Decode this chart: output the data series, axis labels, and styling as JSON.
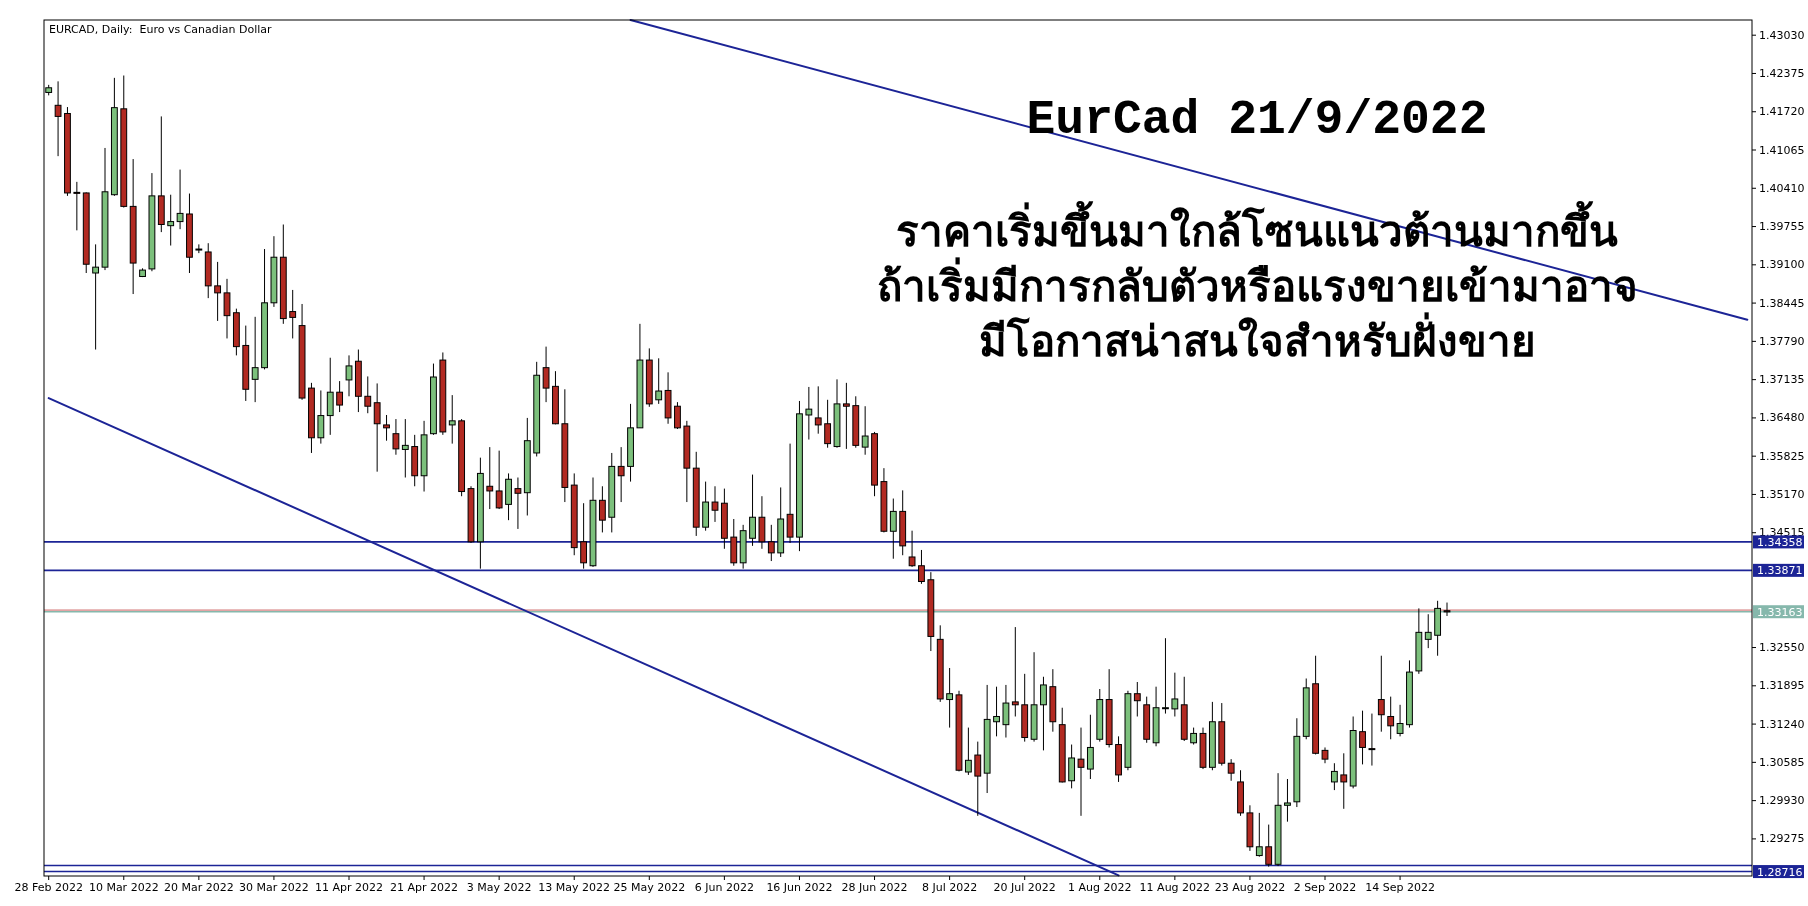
{
  "chart_data": {
    "type": "candlestick",
    "title": "EurCad 21/9/2022",
    "subtitle": "ราคาเริ่มขึ้นมาใกล้โซนแนวต้านมากขึ้น\nถ้าเริ่มมีการกลับตัวหรือแรงขายเข้ามาอาจ\nมีโอกาสน่าสนใจสำหรับฝั่งขาย",
    "annotations": [
      "EURCAD, Daily:  Euro vs Canadian Dollar"
    ],
    "categories": [
      "28 Feb 2022",
      null,
      null,
      null,
      null,
      null,
      null,
      null,
      "10 Mar 2022",
      null,
      null,
      null,
      null,
      null,
      null,
      null,
      "20 Mar 2022",
      null,
      null,
      null,
      null,
      null,
      null,
      null,
      "30 Mar 2022",
      null,
      null,
      null,
      null,
      null,
      null,
      null,
      "11 Apr 2022",
      null,
      null,
      null,
      null,
      null,
      null,
      null,
      "21 Apr 2022",
      null,
      null,
      null,
      null,
      null,
      null,
      null,
      "3 May 2022",
      null,
      null,
      null,
      null,
      null,
      null,
      null,
      "13 May 2022",
      null,
      null,
      null,
      null,
      null,
      null,
      null,
      "25 May 2022",
      null,
      null,
      null,
      null,
      null,
      null,
      null,
      "6 Jun 2022",
      null,
      null,
      null,
      null,
      null,
      null,
      null,
      "16 Jun 2022",
      null,
      null,
      null,
      null,
      null,
      null,
      null,
      "28 Jun 2022",
      null,
      null,
      null,
      null,
      null,
      null,
      null,
      "8 Jul 2022",
      null,
      null,
      null,
      null,
      null,
      null,
      null,
      "20 Jul 2022",
      null,
      null,
      null,
      null,
      null,
      null,
      null,
      "1 Aug 2022",
      null,
      null,
      null,
      null,
      null,
      null,
      null,
      "11 Aug 2022",
      null,
      null,
      null,
      null,
      null,
      null,
      null,
      "23 Aug 2022",
      null,
      null,
      null,
      null,
      null,
      null,
      null,
      "2 Sep 2022",
      null,
      null,
      null,
      null,
      null,
      null,
      null,
      "14 Sep 2022",
      null,
      null,
      null,
      null,
      null,
      null,
      null,
      null,
      null,
      null,
      null,
      null,
      null,
      null,
      null,
      null,
      null,
      null,
      null,
      null,
      null,
      null,
      null,
      null,
      null,
      null,
      null,
      null,
      null,
      null,
      null,
      null,
      null,
      null,
      null,
      null,
      null
    ],
    "ohlc": [
      [
        1.4205,
        1.4218,
        1.42,
        1.4213
      ],
      [
        1.4183,
        1.4224,
        1.4096,
        1.4164
      ],
      [
        1.4169,
        1.418,
        1.4028,
        1.4033
      ],
      [
        1.4034,
        1.4052,
        1.3969,
        1.4033
      ],
      [
        1.4033,
        1.4034,
        1.3896,
        1.3911
      ],
      [
        1.3896,
        1.3945,
        1.3765,
        1.3906
      ],
      [
        1.3906,
        1.411,
        1.3901,
        1.4035
      ],
      [
        1.403,
        1.423,
        1.4028,
        1.4179
      ],
      [
        1.4177,
        1.4234,
        1.4008,
        1.401
      ],
      [
        1.401,
        1.4091,
        1.386,
        1.3913
      ],
      [
        1.389,
        1.3904,
        1.3889,
        1.3901
      ],
      [
        1.3903,
        1.4067,
        1.3899,
        1.4028
      ],
      [
        1.4028,
        1.4164,
        1.3966,
        1.3979
      ],
      [
        1.3977,
        1.403,
        1.3943,
        1.3984
      ],
      [
        1.3984,
        1.4073,
        1.3971,
        1.3998
      ],
      [
        1.3997,
        1.4032,
        1.3896,
        1.3923
      ],
      [
        1.3937,
        1.3945,
        1.393,
        1.3937
      ],
      [
        1.3932,
        1.3947,
        1.3853,
        1.3874
      ],
      [
        1.3874,
        1.3915,
        1.3814,
        1.3862
      ],
      [
        1.3862,
        1.3886,
        1.3784,
        1.3823
      ],
      [
        1.3828,
        1.3835,
        1.3755,
        1.377
      ],
      [
        1.3772,
        1.3806,
        1.3677,
        1.3697
      ],
      [
        1.3714,
        1.3821,
        1.3675,
        1.3734
      ],
      [
        1.3734,
        1.3937,
        1.3731,
        1.3845
      ],
      [
        1.3845,
        1.3959,
        1.3838,
        1.3923
      ],
      [
        1.3923,
        1.3979,
        1.3809,
        1.3818
      ],
      [
        1.383,
        1.3867,
        1.3784,
        1.382
      ],
      [
        1.3806,
        1.3843,
        1.3679,
        1.3682
      ],
      [
        1.3699,
        1.3708,
        1.3588,
        1.3614
      ],
      [
        1.3614,
        1.3695,
        1.3604,
        1.3652
      ],
      [
        1.3652,
        1.3751,
        1.3619,
        1.3692
      ],
      [
        1.3692,
        1.3711,
        1.3658,
        1.367
      ],
      [
        1.3713,
        1.3755,
        1.3685,
        1.3737
      ],
      [
        1.3745,
        1.3765,
        1.3658,
        1.3685
      ],
      [
        1.3685,
        1.3719,
        1.3656,
        1.3668
      ],
      [
        1.3674,
        1.3707,
        1.3556,
        1.3638
      ],
      [
        1.3636,
        1.3653,
        1.3609,
        1.3631
      ],
      [
        1.3621,
        1.3646,
        1.3585,
        1.3595
      ],
      [
        1.3594,
        1.3646,
        1.3546,
        1.3601
      ],
      [
        1.3599,
        1.3619,
        1.3531,
        1.3549
      ],
      [
        1.3549,
        1.3643,
        1.3522,
        1.3619
      ],
      [
        1.3621,
        1.3741,
        1.3619,
        1.3718
      ],
      [
        1.3747,
        1.376,
        1.3619,
        1.3624
      ],
      [
        1.3636,
        1.3687,
        1.3604,
        1.3643
      ],
      [
        1.3643,
        1.3646,
        1.3514,
        1.3522
      ],
      [
        1.3527,
        1.3531,
        1.3434,
        1.3436
      ],
      [
        1.3436,
        1.358,
        1.339,
        1.3553
      ],
      [
        1.3531,
        1.3598,
        1.3492,
        1.3523
      ],
      [
        1.3523,
        1.3592,
        1.3492,
        1.3494
      ],
      [
        1.35,
        1.3553,
        1.3473,
        1.3543
      ],
      [
        1.3527,
        1.3546,
        1.3458,
        1.3519
      ],
      [
        1.352,
        1.3648,
        1.3481,
        1.3609
      ],
      [
        1.3588,
        1.3744,
        1.3582,
        1.3721
      ],
      [
        1.3734,
        1.377,
        1.3675,
        1.3699
      ],
      [
        1.3702,
        1.3728,
        1.3637,
        1.3638
      ],
      [
        1.3638,
        1.3697,
        1.3504,
        1.3529
      ],
      [
        1.3533,
        1.3553,
        1.3413,
        1.3426
      ],
      [
        1.3436,
        1.3502,
        1.339,
        1.34
      ],
      [
        1.3395,
        1.3546,
        1.3393,
        1.3507
      ],
      [
        1.3507,
        1.3531,
        1.3452,
        1.3473
      ],
      [
        1.3478,
        1.3588,
        1.3452,
        1.3565
      ],
      [
        1.3565,
        1.3598,
        1.3504,
        1.3549
      ],
      [
        1.3565,
        1.3672,
        1.3539,
        1.3631
      ],
      [
        1.3631,
        1.3809,
        1.3631,
        1.3747
      ],
      [
        1.3747,
        1.3767,
        1.3667,
        1.3672
      ],
      [
        1.3679,
        1.375,
        1.3672,
        1.3694
      ],
      [
        1.3695,
        1.3726,
        1.3638,
        1.3648
      ],
      [
        1.3668,
        1.3675,
        1.3629,
        1.3631
      ],
      [
        1.3634,
        1.3643,
        1.3504,
        1.3562
      ],
      [
        1.3562,
        1.359,
        1.3446,
        1.3461
      ],
      [
        1.3461,
        1.3539,
        1.3455,
        1.3504
      ],
      [
        1.3504,
        1.3531,
        1.347,
        1.349
      ],
      [
        1.3502,
        1.3527,
        1.3424,
        1.3442
      ],
      [
        1.3444,
        1.3475,
        1.3395,
        1.34
      ],
      [
        1.34,
        1.3465,
        1.339,
        1.3455
      ],
      [
        1.3442,
        1.3551,
        1.3429,
        1.3478
      ],
      [
        1.3478,
        1.3514,
        1.3424,
        1.3436
      ],
      [
        1.3436,
        1.3465,
        1.3403,
        1.3417
      ],
      [
        1.3417,
        1.3529,
        1.341,
        1.3475
      ],
      [
        1.3483,
        1.3604,
        1.3434,
        1.3444
      ],
      [
        1.3444,
        1.3677,
        1.342,
        1.3655
      ],
      [
        1.3653,
        1.3701,
        1.3611,
        1.3663
      ],
      [
        1.3648,
        1.3702,
        1.3621,
        1.3636
      ],
      [
        1.3638,
        1.3679,
        1.3597,
        1.3604
      ],
      [
        1.3599,
        1.3714,
        1.3597,
        1.3672
      ],
      [
        1.3672,
        1.3708,
        1.3595,
        1.3668
      ],
      [
        1.3669,
        1.3685,
        1.3597,
        1.3601
      ],
      [
        1.3598,
        1.3668,
        1.3585,
        1.3617
      ],
      [
        1.3621,
        1.3624,
        1.3514,
        1.3533
      ],
      [
        1.3539,
        1.3562,
        1.3452,
        1.3454
      ],
      [
        1.3454,
        1.351,
        1.3407,
        1.3488
      ],
      [
        1.3488,
        1.3524,
        1.3413,
        1.3429
      ],
      [
        1.341,
        1.3455,
        1.3393,
        1.3395
      ],
      [
        1.3395,
        1.3422,
        1.3364,
        1.3368
      ],
      [
        1.3371,
        1.3384,
        1.3249,
        1.3274
      ],
      [
        1.3269,
        1.3293,
        1.3162,
        1.3167
      ],
      [
        1.3166,
        1.322,
        1.3118,
        1.3176
      ],
      [
        1.3174,
        1.3181,
        1.3043,
        1.3045
      ],
      [
        1.3042,
        1.3118,
        1.3037,
        1.3062
      ],
      [
        1.3071,
        1.3094,
        1.2967,
        1.3035
      ],
      [
        1.304,
        1.3191,
        1.3006,
        1.3132
      ],
      [
        1.3128,
        1.3188,
        1.3103,
        1.3137
      ],
      [
        1.3123,
        1.3191,
        1.3101,
        1.316
      ],
      [
        1.3162,
        1.329,
        1.3137,
        1.3157
      ],
      [
        1.3157,
        1.321,
        1.3094,
        1.3101
      ],
      [
        1.3098,
        1.3247,
        1.3094,
        1.3157
      ],
      [
        1.3157,
        1.3205,
        1.3079,
        1.3191
      ],
      [
        1.3188,
        1.3218,
        1.3111,
        1.3128
      ],
      [
        1.3123,
        1.3152,
        1.3024,
        1.3025
      ],
      [
        1.3027,
        1.3089,
        1.3014,
        1.3066
      ],
      [
        1.3064,
        1.3118,
        1.2967,
        1.305
      ],
      [
        1.3047,
        1.314,
        1.303,
        1.3084
      ],
      [
        1.3098,
        1.3184,
        1.3094,
        1.3166
      ],
      [
        1.3166,
        1.3218,
        1.3084,
        1.3089
      ],
      [
        1.3089,
        1.3103,
        1.3025,
        1.3037
      ],
      [
        1.305,
        1.3181,
        1.3045,
        1.3176
      ],
      [
        1.3176,
        1.3196,
        1.3137,
        1.3164
      ],
      [
        1.3157,
        1.3171,
        1.3092,
        1.3098
      ],
      [
        1.3092,
        1.3188,
        1.3086,
        1.3152
      ],
      [
        1.3152,
        1.3271,
        1.3142,
        1.3152
      ],
      [
        1.315,
        1.3212,
        1.3137,
        1.3167
      ],
      [
        1.3157,
        1.3205,
        1.3095,
        1.3098
      ],
      [
        1.3092,
        1.3118,
        1.3089,
        1.3108
      ],
      [
        1.3108,
        1.3118,
        1.3047,
        1.305
      ],
      [
        1.305,
        1.3162,
        1.3045,
        1.3128
      ],
      [
        1.3128,
        1.316,
        1.3053,
        1.3057
      ],
      [
        1.3057,
        1.3064,
        1.3027,
        1.304
      ],
      [
        1.3025,
        1.3045,
        1.2967,
        1.2972
      ],
      [
        1.2972,
        1.2985,
        1.2907,
        1.2914
      ],
      [
        1.2899,
        1.2972,
        1.2897,
        1.2914
      ],
      [
        1.2914,
        1.2952,
        1.288,
        1.2884
      ],
      [
        1.2884,
        1.304,
        1.2881,
        1.2985
      ],
      [
        1.2985,
        1.303,
        1.2957,
        1.2989
      ],
      [
        1.2991,
        1.3134,
        1.2982,
        1.3103
      ],
      [
        1.3103,
        1.3202,
        1.3098,
        1.3186
      ],
      [
        1.3193,
        1.3241,
        1.3072,
        1.3074
      ],
      [
        1.3079,
        1.3084,
        1.3057,
        1.3064
      ],
      [
        1.3025,
        1.3057,
        1.3011,
        1.3043
      ],
      [
        1.3037,
        1.3074,
        1.2979,
        1.3025
      ],
      [
        1.3018,
        1.3137,
        1.3014,
        1.3113
      ],
      [
        1.3111,
        1.3147,
        1.3055,
        1.3084
      ],
      [
        1.3082,
        1.3142,
        1.3053,
        1.3081
      ],
      [
        1.3166,
        1.3241,
        1.3111,
        1.314
      ],
      [
        1.3137,
        1.3171,
        1.3098,
        1.3121
      ],
      [
        1.3108,
        1.3157,
        1.3103,
        1.3125
      ],
      [
        1.3123,
        1.3233,
        1.3118,
        1.3213
      ],
      [
        1.3215,
        1.3322,
        1.321,
        1.3281
      ],
      [
        1.3269,
        1.3312,
        1.3254,
        1.3281
      ],
      [
        1.3276,
        1.3335,
        1.3241,
        1.3322
      ],
      [
        1.3318,
        1.3332,
        1.3309,
        1.3316
      ],
      null,
      null,
      null,
      null,
      null,
      null,
      null,
      null,
      null,
      null,
      null,
      null,
      null,
      null,
      null,
      null,
      null,
      null,
      null,
      null,
      null,
      null,
      null,
      null,
      null,
      null,
      null,
      null,
      null,
      null,
      null,
      null
    ],
    "colors": [
      "#7cc07c",
      "#b22a22",
      "#b22a22",
      "#b22a22",
      "#b22a22",
      "#7cc07c",
      "#7cc07c",
      "#7cc07c",
      "#b22a22",
      "#b22a22",
      "#7cc07c",
      "#7cc07c",
      "#b22a22",
      "#7cc07c",
      "#7cc07c",
      "#b22a22",
      "#7cc07c",
      "#b22a22",
      "#b22a22",
      "#b22a22",
      "#b22a22",
      "#b22a22",
      "#7cc07c",
      "#7cc07c",
      "#7cc07c",
      "#b22a22",
      "#b22a22",
      "#b22a22",
      "#b22a22",
      "#7cc07c",
      "#7cc07c",
      "#b22a22",
      "#7cc07c",
      "#b22a22",
      "#b22a22",
      "#b22a22",
      "#b22a22",
      "#b22a22",
      "#7cc07c",
      "#b22a22",
      "#7cc07c",
      "#7cc07c",
      "#b22a22",
      "#7cc07c",
      "#b22a22",
      "#b22a22",
      "#7cc07c",
      "#b22a22",
      "#b22a22",
      "#7cc07c",
      "#b22a22",
      "#7cc07c",
      "#7cc07c",
      "#b22a22",
      "#b22a22",
      "#b22a22",
      "#b22a22",
      "#b22a22",
      "#7cc07c",
      "#b22a22",
      "#7cc07c",
      "#b22a22",
      "#7cc07c",
      "#7cc07c",
      "#b22a22",
      "#7cc07c",
      "#b22a22",
      "#b22a22",
      "#b22a22",
      "#b22a22",
      "#7cc07c",
      "#b22a22",
      "#b22a22",
      "#b22a22",
      "#7cc07c",
      "#7cc07c",
      "#b22a22",
      "#b22a22",
      "#7cc07c",
      "#b22a22",
      "#7cc07c",
      "#7cc07c",
      "#b22a22",
      "#b22a22",
      "#7cc07c",
      "#b22a22",
      "#b22a22",
      "#7cc07c",
      "#b22a22",
      "#b22a22",
      "#7cc07c",
      "#b22a22",
      "#b22a22",
      "#b22a22",
      "#b22a22",
      "#b22a22",
      "#7cc07c",
      "#b22a22",
      "#7cc07c",
      "#b22a22",
      "#7cc07c",
      "#7cc07c",
      "#7cc07c",
      "#b22a22",
      "#b22a22",
      "#7cc07c",
      "#7cc07c",
      "#b22a22",
      "#b22a22",
      "#7cc07c",
      "#b22a22",
      "#7cc07c",
      "#7cc07c",
      "#b22a22",
      "#b22a22",
      "#7cc07c",
      "#b22a22",
      "#b22a22",
      "#7cc07c",
      "#7cc07c",
      "#7cc07c",
      "#b22a22",
      "#7cc07c",
      "#b22a22",
      "#7cc07c",
      "#b22a22",
      "#b22a22",
      "#b22a22",
      "#b22a22",
      "#7cc07c",
      "#b22a22",
      "#7cc07c",
      "#7cc07c",
      "#7cc07c",
      "#7cc07c",
      "#b22a22",
      "#b22a22",
      "#7cc07c",
      "#b22a22",
      "#7cc07c",
      "#b22a22",
      "#b22a22",
      "#b22a22",
      "#b22a22",
      "#7cc07c",
      "#7cc07c",
      "#7cc07c",
      "#7cc07c",
      "#7cc07c",
      "#b22a22",
      null,
      null,
      null,
      null,
      null,
      null,
      null,
      null,
      null,
      null,
      null,
      null,
      null,
      null,
      null,
      null,
      null,
      null,
      null,
      null,
      null,
      null,
      null,
      null,
      null,
      null,
      null,
      null,
      null,
      null,
      null,
      null
    ],
    "series": [
      {
        "type": "line",
        "color": "#1c2496",
        "values": [
          1.3682,
          null,
          null,
          null,
          null,
          null,
          null,
          null,
          null,
          null,
          null,
          null,
          null,
          null,
          null,
          null,
          null,
          null,
          null,
          null,
          null,
          null,
          null,
          null,
          null,
          null,
          null,
          null,
          null,
          null,
          null,
          null,
          null,
          null,
          null,
          null,
          null,
          null,
          null,
          null,
          null,
          null,
          null,
          null,
          null,
          null,
          null,
          null,
          null,
          null,
          null,
          null,
          null,
          null,
          null,
          null,
          null,
          null,
          null,
          null,
          null,
          null,
          null,
          null,
          null,
          null,
          null,
          null,
          null,
          null,
          null,
          null,
          null,
          null,
          null,
          null,
          null,
          null,
          null,
          null,
          null,
          null,
          null,
          null,
          null,
          null,
          null,
          null,
          null,
          null,
          null,
          null,
          null,
          null,
          null,
          null,
          null,
          null,
          null,
          null,
          null,
          null,
          null,
          null,
          null,
          null,
          null,
          null,
          null,
          null,
          null,
          null,
          null,
          null,
          1.2865,
          null,
          null,
          null,
          null,
          null,
          null,
          null,
          null,
          null,
          null,
          null,
          null,
          null,
          null,
          null,
          null,
          null,
          null,
          null,
          null,
          null,
          null,
          null,
          null,
          null,
          null,
          null,
          null,
          null,
          null,
          null,
          null,
          null,
          null,
          null,
          null,
          null,
          null,
          null,
          null,
          null,
          null,
          null,
          null,
          null,
          null,
          null,
          null,
          null,
          null,
          null,
          null,
          null,
          null,
          null,
          null,
          null,
          null,
          null,
          null,
          null,
          null,
          null,
          null,
          null,
          null,
          null
        ]
      },
      {
        "type": "line",
        "color": "#1c2496",
        "values": [
          null,
          null,
          null,
          null,
          null,
          null,
          null,
          null,
          null,
          null,
          null,
          null,
          null,
          null,
          null,
          null,
          null,
          null,
          null,
          null,
          null,
          null,
          null,
          null,
          null,
          null,
          null,
          null,
          null,
          null,
          null,
          null,
          null,
          null,
          null,
          null,
          null,
          null,
          null,
          null,
          null,
          null,
          null,
          null,
          null,
          null,
          null,
          null,
          null,
          null,
          null,
          null,
          null,
          null,
          null,
          null,
          null,
          null,
          null,
          null,
          null,
          null,
          1.4329,
          null,
          null,
          null,
          null,
          null,
          null,
          null,
          null,
          null,
          null,
          null,
          null,
          null,
          null,
          null,
          null,
          null,
          null,
          null,
          null,
          null,
          null,
          null,
          null,
          null,
          null,
          null,
          null,
          null,
          null,
          null,
          null,
          null,
          null,
          null,
          null,
          null,
          null,
          null,
          null,
          null,
          null,
          null,
          null,
          null,
          null,
          null,
          null,
          null,
          null,
          null,
          null,
          null,
          null,
          null,
          null,
          null,
          null,
          null,
          null,
          null,
          null,
          null,
          null,
          null,
          null,
          null,
          null,
          null,
          null,
          null,
          null,
          null,
          null,
          null,
          null,
          null,
          null,
          null,
          null,
          null,
          null,
          null,
          null,
          null,
          null,
          null,
          null,
          null,
          null,
          null,
          null,
          null,
          null,
          null,
          null,
          null,
          null,
          null,
          null,
          null,
          null,
          null,
          null,
          null,
          null,
          null,
          null,
          null,
          null,
          null,
          null,
          null,
          null,
          null,
          null,
          null,
          null,
          1.3816
        ]
      }
    ],
    "ylim": [
      1.2864,
      1.4329
    ],
    "yticks": [
      {
        "value": 1.4303,
        "label": "1.43030"
      },
      1.42375,
      {
        "value": 1.4172,
        "label": "1.41720"
      },
      1.41065,
      {
        "value": 1.4041,
        "label": "1.40410"
      },
      1.39755,
      {
        "value": 1.391,
        "label": "1.39100"
      },
      1.38445,
      {
        "value": 1.3779,
        "label": "1.37790"
      },
      1.37135,
      {
        "value": 1.3648,
        "label": "1.36480"
      },
      1.35825,
      {
        "value": 1.3517,
        "label": "1.35170"
      },
      1.34515,
      {
        "value": 1.3255,
        "label": "1.32550"
      },
      1.31895,
      {
        "value": 1.3124,
        "label": "1.31240"
      },
      1.30585,
      {
        "value": 1.2993,
        "label": "1.29930"
      },
      1.29275
    ],
    "ref_lines": [
      {
        "axis": "y",
        "value": 1.34358,
        "label": "1.34358",
        "color": "#1c2496"
      },
      {
        "axis": "y",
        "value": 1.33871,
        "label": "1.33871",
        "color": "#1c2496"
      },
      {
        "axis": "y",
        "value": 1.3319,
        "color": "#e2a4a4"
      },
      {
        "axis": "y",
        "value": 1.33163,
        "label": "1.33163",
        "color": "#86b8ac"
      },
      {
        "axis": "y",
        "value": 1.2882,
        "color": "#1c2496"
      },
      {
        "axis": "y",
        "value": 1.28716,
        "label": "1.28716",
        "color": "#1c2496"
      }
    ]
  }
}
